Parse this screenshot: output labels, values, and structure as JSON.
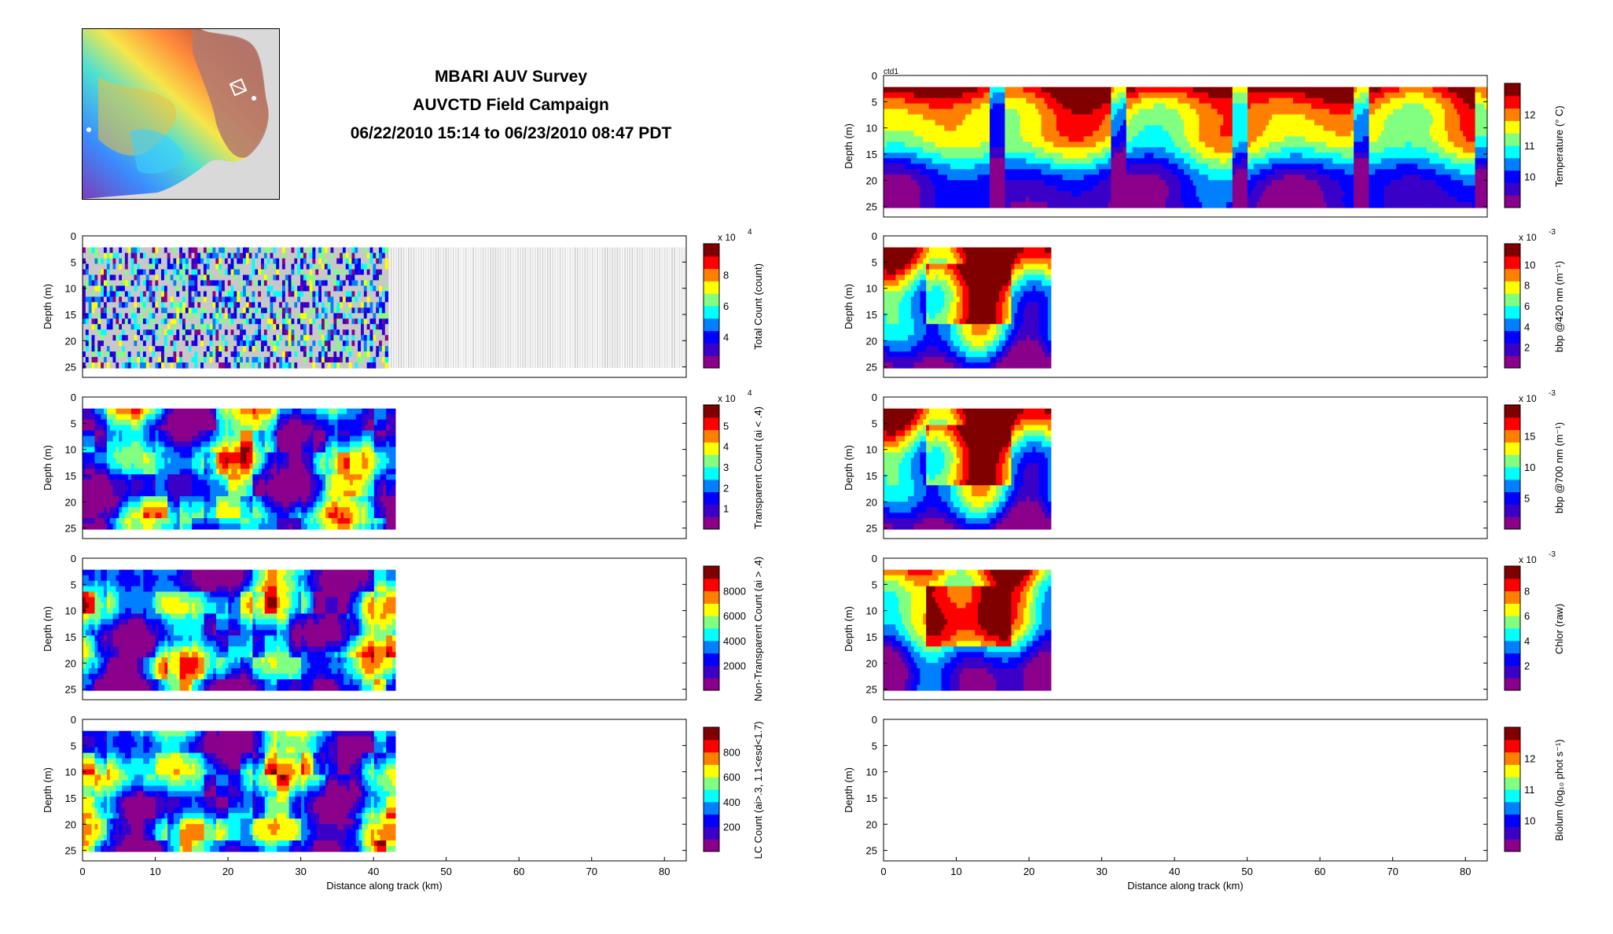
{
  "header": {
    "title_line1": "MBARI AUV Survey",
    "title_line2": "AUVCTD Field Campaign",
    "title_line3": "06/22/2010 15:14 to 06/23/2010 08:47 PDT"
  },
  "colors": {
    "jet": [
      "#8b008b",
      "#3b00c8",
      "#0000ff",
      "#0080ff",
      "#00ffff",
      "#80ff80",
      "#ffff00",
      "#ff8000",
      "#ff0000",
      "#800000"
    ],
    "frame": "#000000",
    "missing": "#c8c8c8"
  },
  "chart_data": [
    {
      "id": "total-count",
      "type": "heatmap",
      "column": "left",
      "ylabel": "Depth (m)",
      "yticks": [
        "0",
        "5",
        "10",
        "15",
        "20",
        "25"
      ],
      "xlabel": "",
      "xticks": [],
      "xlim": [
        0,
        83
      ],
      "ylim": [
        0,
        27
      ],
      "data_extent_km": 42,
      "colorbar_label": "Total Count (count)",
      "colorbar_ticks": [
        "4",
        "6",
        "8"
      ],
      "colorbar_exponent": "x 10",
      "colorbar_power": "4",
      "style": "sparse-gray"
    },
    {
      "id": "transparent-count",
      "type": "heatmap",
      "column": "left",
      "ylabel": "Depth (m)",
      "yticks": [
        "0",
        "5",
        "10",
        "15",
        "20",
        "25"
      ],
      "xlabel": "",
      "xticks": [],
      "xlim": [
        0,
        83
      ],
      "ylim": [
        0,
        27
      ],
      "data_extent_km": 43,
      "colorbar_label": "Transparent Count (ai < .4)",
      "colorbar_ticks": [
        "1",
        "2",
        "3",
        "4",
        "5"
      ],
      "colorbar_exponent": "x 10",
      "colorbar_power": "4",
      "style": "blob"
    },
    {
      "id": "non-transparent-count",
      "type": "heatmap",
      "column": "left",
      "ylabel": "Depth (m)",
      "yticks": [
        "0",
        "5",
        "10",
        "15",
        "20",
        "25"
      ],
      "xlabel": "",
      "xticks": [],
      "xlim": [
        0,
        83
      ],
      "ylim": [
        0,
        27
      ],
      "data_extent_km": 43,
      "colorbar_label": "Non-Transparent Count (ai > .4)",
      "colorbar_ticks": [
        "2000",
        "4000",
        "6000",
        "8000"
      ],
      "style": "blob"
    },
    {
      "id": "lc-count",
      "type": "heatmap",
      "column": "left",
      "ylabel": "Depth (m)",
      "yticks": [
        "0",
        "5",
        "10",
        "15",
        "20",
        "25"
      ],
      "xlabel": "Distance along track (km)",
      "xticks": [
        "0",
        "10",
        "20",
        "30",
        "40",
        "50",
        "60",
        "70",
        "80"
      ],
      "xlim": [
        0,
        83
      ],
      "ylim": [
        0,
        27
      ],
      "data_extent_km": 43,
      "colorbar_label": "LC Count (ai>.3, 1.1<esd<1.7)",
      "colorbar_ticks": [
        "200",
        "400",
        "600",
        "800"
      ],
      "style": "blob"
    },
    {
      "id": "temperature",
      "type": "heatmap",
      "column": "right",
      "panel_label": "ctd1",
      "ylabel": "Depth (m)",
      "yticks": [
        "0",
        "5",
        "10",
        "15",
        "20",
        "25"
      ],
      "xlabel": "",
      "xticks": [],
      "xlim": [
        0,
        83
      ],
      "ylim": [
        0,
        27
      ],
      "data_extent_km": 83,
      "colorbar_label": "Temperature (° C)",
      "colorbar_ticks": [
        "10",
        "11",
        "12"
      ],
      "style": "temp"
    },
    {
      "id": "bbp-420",
      "type": "heatmap",
      "column": "right",
      "ylabel": "Depth (m)",
      "yticks": [
        "0",
        "5",
        "10",
        "15",
        "20",
        "25"
      ],
      "xlabel": "",
      "xticks": [],
      "xlim": [
        0,
        83
      ],
      "ylim": [
        0,
        27
      ],
      "data_extent_km": 23,
      "colorbar_label": "bbp @420 nm (m⁻¹)",
      "colorbar_ticks": [
        "2",
        "4",
        "6",
        "8",
        "10"
      ],
      "colorbar_exponent": "x 10",
      "colorbar_power": "-3",
      "style": "bio"
    },
    {
      "id": "bbp-700",
      "type": "heatmap",
      "column": "right",
      "ylabel": "Depth (m)",
      "yticks": [
        "0",
        "5",
        "10",
        "15",
        "20",
        "25"
      ],
      "xlabel": "",
      "xticks": [],
      "xlim": [
        0,
        83
      ],
      "ylim": [
        0,
        27
      ],
      "data_extent_km": 23,
      "colorbar_label": "bbp @700 nm (m⁻¹)",
      "colorbar_ticks": [
        "5",
        "10",
        "15"
      ],
      "colorbar_exponent": "x 10",
      "colorbar_power": "-3",
      "style": "bio"
    },
    {
      "id": "chlor",
      "type": "heatmap",
      "column": "right",
      "ylabel": "Depth (m)",
      "yticks": [
        "0",
        "5",
        "10",
        "15",
        "20",
        "25"
      ],
      "xlabel": "",
      "xticks": [],
      "xlim": [
        0,
        83
      ],
      "ylim": [
        0,
        27
      ],
      "data_extent_km": 23,
      "colorbar_label": "Chlor (raw)",
      "colorbar_ticks": [
        "2",
        "4",
        "6",
        "8"
      ],
      "colorbar_exponent": "x 10",
      "colorbar_power": "-3",
      "style": "bio"
    },
    {
      "id": "biolum",
      "type": "heatmap",
      "column": "right",
      "ylabel": "Depth (m)",
      "yticks": [
        "0",
        "5",
        "10",
        "15",
        "20",
        "25"
      ],
      "xlabel": "Distance along track (km)",
      "xticks": [
        "0",
        "10",
        "20",
        "30",
        "40",
        "50",
        "60",
        "70",
        "80"
      ],
      "xlim": [
        0,
        83
      ],
      "ylim": [
        0,
        27
      ],
      "data_extent_km": 0,
      "colorbar_label": "Biolum (log₁₀ phot s⁻¹)",
      "colorbar_ticks": [
        "10",
        "11",
        "12"
      ],
      "style": "empty"
    }
  ]
}
